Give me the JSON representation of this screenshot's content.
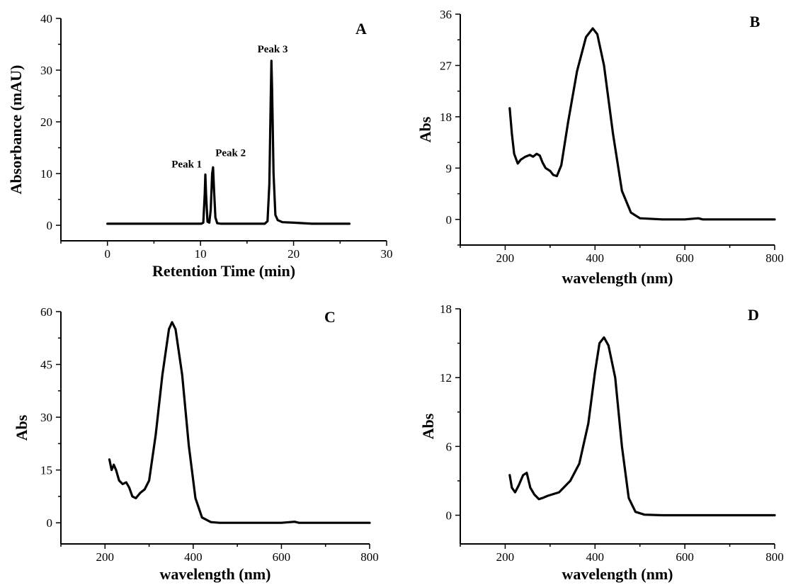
{
  "chart_data": [
    {
      "panel": "A",
      "type": "line",
      "xlabel": "Retention Time (min)",
      "ylabel": "Absorbance (mAU)",
      "xlim": [
        -5,
        30
      ],
      "ylim": [
        -3,
        40
      ],
      "xticks": [
        0,
        10,
        20,
        30
      ],
      "yticks": [
        0,
        10,
        20,
        30,
        40
      ],
      "minor_x_ticks": true,
      "minor_y_ticks": true,
      "grid": false,
      "annotations": [
        {
          "text": "Peak 1",
          "x": 10.5,
          "y": 9.8
        },
        {
          "text": "Peak 2",
          "x": 11.3,
          "y": 11.2
        },
        {
          "text": "Peak 3",
          "x": 17.6,
          "y": 31.8
        }
      ],
      "series": [
        {
          "x": [
            0,
            10.1,
            10.3,
            10.45,
            10.52,
            10.6,
            10.75,
            10.95,
            11.1,
            11.25,
            11.35,
            11.45,
            11.6,
            11.8,
            12.2,
            16.9,
            17.2,
            17.4,
            17.55,
            17.62,
            17.7,
            17.85,
            18.05,
            18.3,
            18.8,
            20,
            22,
            26
          ],
          "y": [
            0.3,
            0.3,
            0.5,
            6.0,
            9.8,
            6.0,
            0.7,
            0.5,
            3.0,
            10.0,
            11.2,
            7.0,
            1.5,
            0.4,
            0.3,
            0.3,
            0.8,
            8.0,
            25.0,
            31.8,
            26.0,
            10.0,
            2.0,
            1.0,
            0.6,
            0.5,
            0.3,
            0.3
          ]
        }
      ]
    },
    {
      "panel": "B",
      "type": "line",
      "xlabel": "wavelength (nm)",
      "ylabel": "Abs",
      "xlim": [
        100,
        800
      ],
      "ylim": [
        -4.5,
        36
      ],
      "xticks": [
        200,
        400,
        600,
        800
      ],
      "yticks": [
        0,
        9,
        18,
        27,
        36
      ],
      "minor_x_ticks": true,
      "minor_y_ticks": true,
      "grid": false,
      "series": [
        {
          "x": [
            210,
            215,
            220,
            228,
            235,
            245,
            255,
            262,
            270,
            277,
            283,
            290,
            300,
            307,
            315,
            325,
            340,
            360,
            380,
            395,
            405,
            420,
            440,
            460,
            480,
            500,
            550,
            600,
            630,
            640,
            700,
            800
          ],
          "y": [
            19.5,
            15.0,
            11.5,
            9.8,
            10.5,
            11.0,
            11.3,
            11.0,
            11.5,
            11.2,
            10.0,
            9.0,
            8.5,
            7.8,
            7.6,
            9.5,
            17.0,
            26.0,
            32.0,
            33.5,
            32.5,
            27.0,
            15.0,
            5.0,
            1.2,
            0.2,
            0.0,
            0.0,
            0.2,
            0.0,
            0.0,
            0.0
          ]
        }
      ]
    },
    {
      "panel": "C",
      "type": "line",
      "xlabel": "wavelength (nm)",
      "ylabel": "Abs",
      "xlim": [
        100,
        800
      ],
      "ylim": [
        -6,
        60
      ],
      "xticks": [
        200,
        400,
        600,
        800
      ],
      "yticks": [
        0,
        15,
        30,
        45,
        60
      ],
      "minor_x_ticks": true,
      "minor_y_ticks": true,
      "grid": false,
      "series": [
        {
          "x": [
            210,
            215,
            220,
            225,
            232,
            240,
            248,
            255,
            262,
            270,
            280,
            290,
            300,
            315,
            330,
            345,
            352,
            360,
            375,
            390,
            405,
            420,
            440,
            460,
            500,
            600,
            630,
            640,
            700,
            800
          ],
          "y": [
            18.0,
            15.0,
            16.5,
            15.0,
            12.0,
            11.0,
            11.5,
            10.0,
            7.5,
            7.0,
            8.5,
            9.5,
            12.0,
            25.0,
            42.0,
            55.0,
            57.0,
            55.0,
            42.0,
            22.0,
            7.0,
            1.5,
            0.2,
            0.0,
            0.0,
            0.0,
            0.3,
            0.0,
            0.0,
            0.0
          ]
        }
      ]
    },
    {
      "panel": "D",
      "type": "line",
      "xlabel": "wavelength (nm)",
      "ylabel": "Abs",
      "xlim": [
        100,
        800
      ],
      "ylim": [
        -2.5,
        18
      ],
      "xticks": [
        200,
        400,
        600,
        800
      ],
      "yticks": [
        0,
        6,
        12,
        18
      ],
      "minor_x_ticks": true,
      "minor_y_ticks": true,
      "grid": false,
      "series": [
        {
          "x": [
            210,
            215,
            222,
            230,
            240,
            248,
            256,
            265,
            275,
            283,
            295,
            320,
            345,
            365,
            385,
            400,
            410,
            420,
            430,
            445,
            460,
            475,
            490,
            510,
            550,
            650,
            800
          ],
          "y": [
            3.5,
            2.4,
            2.0,
            2.6,
            3.5,
            3.7,
            2.4,
            1.8,
            1.4,
            1.5,
            1.7,
            2.0,
            3.0,
            4.5,
            8.0,
            12.5,
            15.0,
            15.5,
            14.8,
            12.0,
            6.0,
            1.5,
            0.3,
            0.05,
            0.0,
            0.0,
            0.0
          ]
        }
      ]
    }
  ]
}
